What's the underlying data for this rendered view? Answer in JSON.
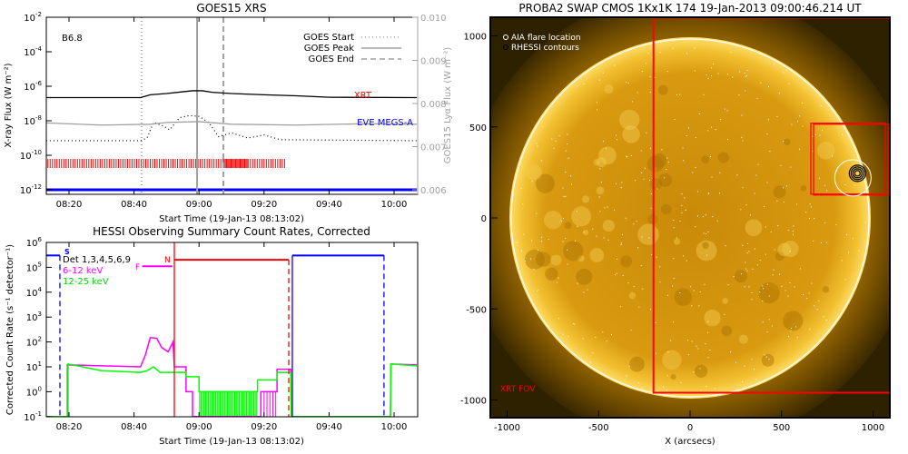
{
  "chart_data": [
    {
      "type": "line",
      "title": "GOES15 XRS",
      "xlabel": "Start Time (19-Jan-13 08:13:02)",
      "ylabel": "X-ray Flux (W m⁻²)",
      "y2label": "GOES15 Lyα Flux (W m⁻²)",
      "xlim_minutes_after_0800": [
        13.03,
        127
      ],
      "ylim_log10": [
        -12,
        -2
      ],
      "y2lim": [
        0.006,
        0.01
      ],
      "x_ticks": [
        {
          "m": 20,
          "label": "08:20"
        },
        {
          "m": 40,
          "label": "08:40"
        },
        {
          "m": 60,
          "label": "09:00"
        },
        {
          "m": 80,
          "label": "09:20"
        },
        {
          "m": 100,
          "label": "09:40"
        },
        {
          "m": 120,
          "label": "10:00"
        }
      ],
      "y_ticks": [
        {
          "e": -2,
          "label": "10",
          "sup": "-2"
        },
        {
          "e": -4,
          "label": "10",
          "sup": "-4"
        },
        {
          "e": -6,
          "label": "10",
          "sup": "-6"
        },
        {
          "e": -8,
          "label": "10",
          "sup": "-8"
        },
        {
          "e": -10,
          "label": "10",
          "sup": "-10"
        },
        {
          "e": -12,
          "label": "10",
          "sup": "-12"
        }
      ],
      "y2_ticks": [
        "0.010",
        "0.009",
        "0.008",
        "0.007",
        "0.006"
      ],
      "class_label": "B6.8",
      "legend": [
        {
          "label": "GOES Start",
          "style": "dotted"
        },
        {
          "label": "GOES Peak",
          "style": "solid"
        },
        {
          "label": "GOES End",
          "style": "dashed"
        }
      ],
      "instrument_labels": [
        {
          "label": "XRT",
          "color": "#ff0000"
        },
        {
          "label": "EVE MEGS-A",
          "color": "#0000ff"
        }
      ],
      "event_lines_minutes": {
        "start": 42.3,
        "peak": 59.4,
        "end": 67.5
      },
      "series": [
        {
          "name": "GOES long (1-8 Å)",
          "color": "#000000",
          "points": [
            [
              13,
              2.2e-07
            ],
            [
              42,
              2.2e-07
            ],
            [
              45,
              3.2e-07
            ],
            [
              50,
              3.8e-07
            ],
            [
              55,
              4.8e-07
            ],
            [
              58,
              5.5e-07
            ],
            [
              61,
              5.5e-07
            ],
            [
              64,
              4.5e-07
            ],
            [
              70,
              3.8e-07
            ],
            [
              80,
              3.2e-07
            ],
            [
              90,
              2.8e-07
            ],
            [
              100,
              2.3e-07
            ],
            [
              127,
              2.2e-07
            ]
          ]
        },
        {
          "name": "GOES short (0.5-4 Å)",
          "color": "#000000",
          "style": "dotted",
          "points": [
            [
              13,
              7e-10
            ],
            [
              42,
              7e-10
            ],
            [
              44,
              1e-09
            ],
            [
              46,
              8e-09
            ],
            [
              49,
              5e-09
            ],
            [
              51,
              3e-09
            ],
            [
              54,
              1.5e-08
            ],
            [
              57,
              2e-08
            ],
            [
              60,
              1.8e-08
            ],
            [
              63,
              8e-09
            ],
            [
              66,
              1.2e-09
            ],
            [
              70,
              2e-09
            ],
            [
              75,
              1e-09
            ],
            [
              80,
              1.5e-09
            ],
            [
              85,
              8e-10
            ],
            [
              127,
              7e-10
            ]
          ]
        },
        {
          "name": "GOES15 Lyα",
          "color": "#a0a0a0",
          "axis": "right",
          "points": [
            [
              13,
              0.00755
            ],
            [
              30,
              0.0075
            ],
            [
              45,
              0.00752
            ],
            [
              50,
              0.00756
            ],
            [
              60,
              0.00758
            ],
            [
              70,
              0.00752
            ],
            [
              90,
              0.0075
            ],
            [
              110,
              0.00753
            ],
            [
              127,
              0.00752
            ]
          ]
        }
      ],
      "xrt_coverage_minutes": [
        13.5,
        86.5
      ],
      "eve_coverage_minutes": [
        13,
        127
      ]
    },
    {
      "type": "line",
      "title": "HESSI Observing Summary Count Rates, Corrected",
      "xlabel": "Start Time (19-Jan-13 08:13:02)",
      "ylabel": "Corrected Count Rate (s⁻¹ detector⁻¹)",
      "xlim_minutes_after_0800": [
        13.03,
        127
      ],
      "ylim_log10": [
        -1,
        6
      ],
      "x_ticks": [
        {
          "m": 20,
          "label": "08:20"
        },
        {
          "m": 40,
          "label": "08:40"
        },
        {
          "m": 60,
          "label": "09:00"
        },
        {
          "m": 80,
          "label": "09:20"
        },
        {
          "m": 100,
          "label": "09:40"
        },
        {
          "m": 120,
          "label": "10:00"
        }
      ],
      "y_ticks": [
        {
          "e": 6,
          "label": "10",
          "sup": "6"
        },
        {
          "e": 5,
          "label": "10",
          "sup": "5"
        },
        {
          "e": 4,
          "label": "10",
          "sup": "4"
        },
        {
          "e": 3,
          "label": "10",
          "sup": "3"
        },
        {
          "e": 2,
          "label": "10",
          "sup": "2"
        },
        {
          "e": 1,
          "label": "10",
          "sup": "1"
        },
        {
          "e": 0,
          "label": "10",
          "sup": "0"
        },
        {
          "e": -1,
          "label": "10",
          "sup": "-1"
        }
      ],
      "legend": [
        {
          "label": "Det 1,3,4,5,6,9",
          "color": "#000000"
        },
        {
          "label": "6-12 keV",
          "color": "#ff00ff"
        },
        {
          "label": "12-25 keV",
          "color": "#00ff00"
        }
      ],
      "flags": [
        {
          "label": "S",
          "color": "#0000ff"
        },
        {
          "label": "F",
          "color": "#ff00ff"
        },
        {
          "label": "N",
          "color": "#ff0000"
        }
      ],
      "series": [
        {
          "name": "6-12 keV",
          "color": "#ff00ff",
          "points": [
            [
              13,
              0.1
            ],
            [
              19.5,
              0.1
            ],
            [
              19.5,
              12
            ],
            [
              30,
              11
            ],
            [
              42,
              10
            ],
            [
              43.5,
              30
            ],
            [
              45,
              150
            ],
            [
              47,
              140
            ],
            [
              48.5,
              60
            ],
            [
              50.5,
              40
            ],
            [
              52,
              100
            ],
            [
              52.4,
              10
            ],
            [
              56,
              10
            ],
            [
              56,
              1
            ],
            [
              58,
              1
            ],
            [
              58,
              0.1
            ],
            [
              79,
              0.1
            ],
            [
              79,
              1
            ],
            [
              84,
              1
            ],
            [
              84,
              8
            ],
            [
              88.2,
              8
            ],
            [
              88.4,
              0.1
            ],
            [
              118.9,
              0.1
            ],
            [
              119,
              13
            ],
            [
              127,
              12
            ]
          ]
        },
        {
          "name": "12-25 keV",
          "color": "#00ff00",
          "points": [
            [
              13,
              0.1
            ],
            [
              19.7,
              0.1
            ],
            [
              19.7,
              13
            ],
            [
              30,
              7
            ],
            [
              42,
              6
            ],
            [
              44,
              7
            ],
            [
              46,
              10
            ],
            [
              48,
              6
            ],
            [
              52,
              6
            ],
            [
              56,
              6
            ],
            [
              56,
              4
            ],
            [
              60,
              4
            ],
            [
              60,
              1
            ],
            [
              78,
              1
            ],
            [
              78,
              3
            ],
            [
              84,
              3
            ],
            [
              84,
              6
            ],
            [
              88.2,
              6
            ],
            [
              88.4,
              0.1
            ],
            [
              118.9,
              0.1
            ],
            [
              119,
              13
            ],
            [
              127,
              11
            ]
          ]
        }
      ],
      "saa": [
        {
          "start": 13,
          "end": 17.2
        },
        {
          "start": 88.7,
          "end": 116.9
        }
      ],
      "flare_flag": {
        "start": 42.5,
        "end": 51.8
      },
      "night": {
        "start": 52.4,
        "end": 87.6
      }
    },
    {
      "type": "image",
      "title": "PROBA2 SWAP CMOS 1Kx1K 174 19-Jan-2013 09:00:46.214 UT",
      "xlabel": "X (arcsecs)",
      "xlim": [
        -1100,
        1100
      ],
      "ylim": [
        -1100,
        1100
      ],
      "x_ticks": [
        "-1000",
        "-500",
        "0",
        "500",
        "1000"
      ],
      "y_ticks": [
        "1000",
        "500",
        "0",
        "-500",
        "-1000"
      ],
      "legend": [
        {
          "label": "AIA flare location",
          "color": "#ffffff"
        },
        {
          "label": "RHESSI contours",
          "color": "#000000"
        }
      ],
      "fov_label": "XRT FOV",
      "solar_radius_arcsec": 975,
      "xrt_fov_arcsec": {
        "x0": -200,
        "x1": 1100,
        "y0": -960,
        "y1": 1100
      },
      "flare_arcsec": {
        "x": 890,
        "y": 220
      }
    }
  ]
}
